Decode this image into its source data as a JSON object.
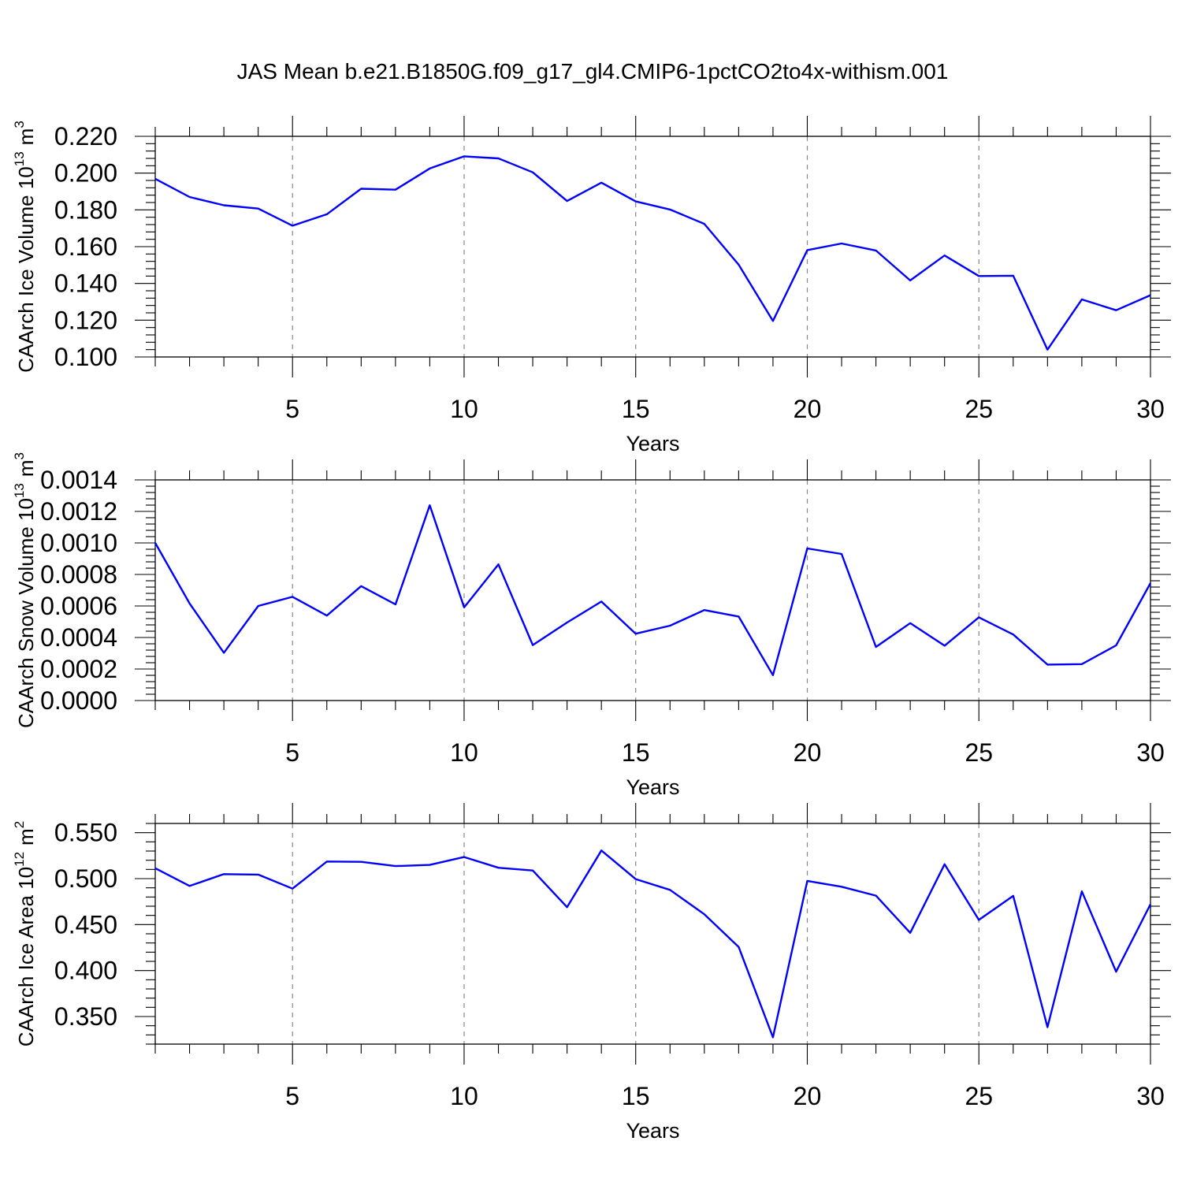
{
  "title": "JAS Mean b.e21.B1850G.f09_g17_gl4.CMIP6-1pctCO2to4x-withism.001",
  "line_color": "#0000ff",
  "chart_data": [
    {
      "type": "line",
      "xlabel": "Years",
      "ylabel": "CAArch Ice Volume 10",
      "ylabel_exp": "13",
      "ylabel_unit": "m",
      "ylabel_unit_exp": "3",
      "xlim": [
        1,
        30
      ],
      "ylim": [
        0.1,
        0.22
      ],
      "xticks": [
        5,
        10,
        15,
        20,
        25,
        30
      ],
      "yticks": [
        "0.100",
        "0.120",
        "0.140",
        "0.160",
        "0.180",
        "0.200",
        "0.220"
      ],
      "x": [
        1,
        2,
        3,
        4,
        5,
        6,
        7,
        8,
        9,
        10,
        11,
        12,
        13,
        14,
        15,
        16,
        17,
        18,
        19,
        20,
        21,
        22,
        23,
        24,
        25,
        26,
        27,
        28,
        29,
        30
      ],
      "values": [
        0.1969,
        0.187,
        0.1825,
        0.1807,
        0.1714,
        0.1776,
        0.1915,
        0.191,
        0.2025,
        0.2091,
        0.208,
        0.2004,
        0.1848,
        0.1948,
        0.1846,
        0.1802,
        0.1724,
        0.1502,
        0.1196,
        0.1581,
        0.1617,
        0.1579,
        0.1416,
        0.1552,
        0.144,
        0.1442,
        0.104,
        0.1313,
        0.1254,
        0.1336
      ]
    },
    {
      "type": "line",
      "xlabel": "Years",
      "ylabel": "CAArch Snow Volume 10",
      "ylabel_exp": "13",
      "ylabel_unit": "m",
      "ylabel_unit_exp": "3",
      "xlim": [
        1,
        30
      ],
      "ylim": [
        0.0,
        0.0014
      ],
      "xticks": [
        5,
        10,
        15,
        20,
        25,
        30
      ],
      "yticks": [
        "0.0000",
        "0.0002",
        "0.0004",
        "0.0006",
        "0.0008",
        "0.0010",
        "0.0012",
        "0.0014"
      ],
      "x": [
        1,
        2,
        3,
        4,
        5,
        6,
        7,
        8,
        9,
        10,
        11,
        12,
        13,
        14,
        15,
        16,
        17,
        18,
        19,
        20,
        21,
        22,
        23,
        24,
        25,
        26,
        27,
        28,
        29,
        30
      ],
      "values": [
        0.001,
        0.000616,
        0.000303,
        0.0006,
        0.000658,
        0.000539,
        0.000726,
        0.00061,
        0.001239,
        0.000591,
        0.000864,
        0.000352,
        0.000495,
        0.000628,
        0.000424,
        0.000475,
        0.000574,
        0.000533,
        0.000161,
        0.000965,
        0.00093,
        0.00034,
        0.000491,
        0.000348,
        0.000528,
        0.000419,
        0.000228,
        0.000231,
        0.00035,
        0.000745
      ]
    },
    {
      "type": "line",
      "xlabel": "Years",
      "ylabel": "CAArch Ice Area 10",
      "ylabel_exp": "12",
      "ylabel_unit": "m",
      "ylabel_unit_exp": "2",
      "xlim": [
        1,
        30
      ],
      "ylim": [
        0.32,
        0.56
      ],
      "xticks": [
        5,
        10,
        15,
        20,
        25,
        30
      ],
      "yticks": [
        "0.350",
        "0.400",
        "0.450",
        "0.500",
        "0.550"
      ],
      "x": [
        1,
        2,
        3,
        4,
        5,
        6,
        7,
        8,
        9,
        10,
        11,
        12,
        13,
        14,
        15,
        16,
        17,
        18,
        19,
        20,
        21,
        22,
        23,
        24,
        25,
        26,
        27,
        28,
        29,
        30
      ],
      "values": [
        0.5113,
        0.492,
        0.5049,
        0.5044,
        0.4891,
        0.5186,
        0.5183,
        0.5136,
        0.5149,
        0.5235,
        0.5118,
        0.5088,
        0.469,
        0.5306,
        0.4995,
        0.4877,
        0.4613,
        0.4257,
        0.3274,
        0.4975,
        0.4912,
        0.4815,
        0.441,
        0.5156,
        0.4551,
        0.4812,
        0.3384,
        0.4861,
        0.3988,
        0.4721
      ]
    }
  ]
}
